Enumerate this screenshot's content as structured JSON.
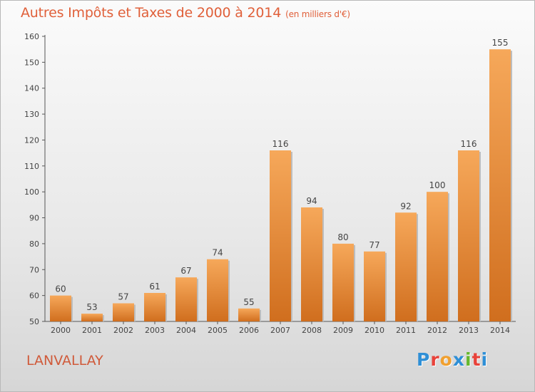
{
  "header": {
    "title": "Autres Impôts et Taxes de 2000 à 2014",
    "unit": "(en milliers d'€)"
  },
  "footer": {
    "town": "LANVALLAY",
    "brand_letters": [
      "P",
      "r",
      "o",
      "x",
      "i",
      "t",
      "i"
    ],
    "brand_colors": [
      "#2f8fd6",
      "#e8423a",
      "#f0a030",
      "#2f8fd6",
      "#66b82e",
      "#e8423a",
      "#2f8fd6"
    ]
  },
  "chart_data": {
    "type": "bar",
    "categories": [
      "2000",
      "2001",
      "2002",
      "2003",
      "2004",
      "2005",
      "2006",
      "2007",
      "2008",
      "2009",
      "2010",
      "2011",
      "2012",
      "2013",
      "2014"
    ],
    "values": [
      60,
      53,
      57,
      61,
      67,
      74,
      55,
      116,
      94,
      80,
      77,
      92,
      100,
      116,
      155
    ],
    "value_labels": [
      "60",
      "53",
      "57",
      "61",
      "67",
      "74",
      "55",
      "116",
      "94",
      "80",
      "77",
      "92",
      "100",
      "116",
      "155"
    ],
    "title": "Autres Impôts et Taxes de 2000 à 2014",
    "xlabel": "",
    "ylabel": "",
    "ylim": [
      50,
      160
    ],
    "yticks": [
      "50",
      "60",
      "70",
      "80",
      "90",
      "100",
      "110",
      "120",
      "130",
      "140",
      "150",
      "160"
    ],
    "grid": false,
    "bar_color_top": "#f6a85a",
    "bar_color_bottom": "#d06e1e"
  }
}
